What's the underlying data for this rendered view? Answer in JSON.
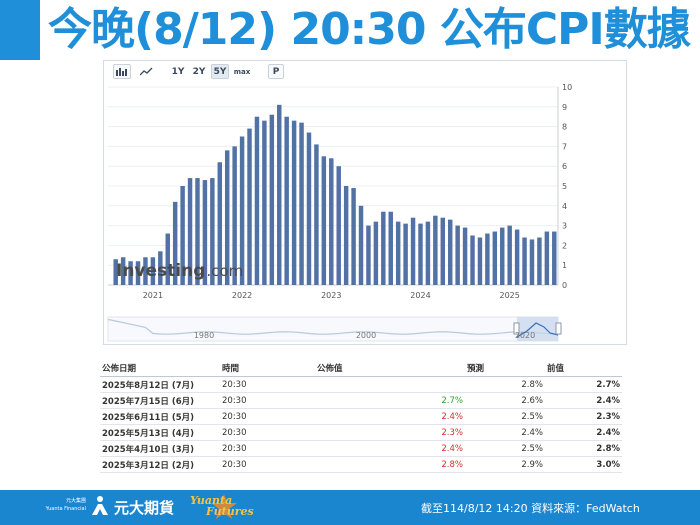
{
  "slide": {
    "title": "今晚(8/12) 20:30 公布CPI數據"
  },
  "toolbar": {
    "bar_chart_icon": "bar-chart-icon",
    "line_chart_icon": "line-chart-icon",
    "ranges": [
      "1Y",
      "2Y",
      "5Y",
      "max"
    ],
    "active_range": "5Y",
    "print_label": "P"
  },
  "chart": {
    "watermark_main": "Investing",
    "watermark_suffix": ".com",
    "navigator_labels": [
      "1980",
      "2000",
      "2020"
    ],
    "bar_color": "#5272a6",
    "navigator_color": "#b9c8dd"
  },
  "chart_data": {
    "type": "bar",
    "title": "",
    "xlabel": "",
    "ylabel": "",
    "ylim": [
      0,
      10
    ],
    "yticks": [
      0,
      1,
      2,
      3,
      4,
      5,
      6,
      7,
      8,
      9,
      10
    ],
    "year_labels": [
      "2021",
      "2022",
      "2023",
      "2024",
      "2025"
    ],
    "categories": [
      "2020-08",
      "2020-09",
      "2020-10",
      "2020-11",
      "2020-12",
      "2021-01",
      "2021-02",
      "2021-03",
      "2021-04",
      "2021-05",
      "2021-06",
      "2021-07",
      "2021-08",
      "2021-09",
      "2021-10",
      "2021-11",
      "2021-12",
      "2022-01",
      "2022-02",
      "2022-03",
      "2022-04",
      "2022-05",
      "2022-06",
      "2022-07",
      "2022-08",
      "2022-09",
      "2022-10",
      "2022-11",
      "2022-12",
      "2023-01",
      "2023-02",
      "2023-03",
      "2023-04",
      "2023-05",
      "2023-06",
      "2023-07",
      "2023-08",
      "2023-09",
      "2023-10",
      "2023-11",
      "2023-12",
      "2024-01",
      "2024-02",
      "2024-03",
      "2024-04",
      "2024-05",
      "2024-06",
      "2024-07",
      "2024-08",
      "2024-09",
      "2024-10",
      "2024-11",
      "2024-12",
      "2025-01",
      "2025-02",
      "2025-03",
      "2025-04",
      "2025-05",
      "2025-06",
      "2025-07"
    ],
    "values": [
      1.3,
      1.4,
      1.2,
      1.2,
      1.4,
      1.4,
      1.7,
      2.6,
      4.2,
      5.0,
      5.4,
      5.4,
      5.3,
      5.4,
      6.2,
      6.8,
      7.0,
      7.5,
      7.9,
      8.5,
      8.3,
      8.6,
      9.1,
      8.5,
      8.3,
      8.2,
      7.7,
      7.1,
      6.5,
      6.4,
      6.0,
      5.0,
      4.9,
      4.0,
      3.0,
      3.2,
      3.7,
      3.7,
      3.2,
      3.1,
      3.4,
      3.1,
      3.2,
      3.5,
      3.4,
      3.3,
      3.0,
      2.9,
      2.5,
      2.4,
      2.6,
      2.7,
      2.9,
      3.0,
      2.8,
      2.4,
      2.3,
      2.4,
      2.7,
      2.7
    ]
  },
  "table": {
    "headers": {
      "date": "公佈日期",
      "time": "時間",
      "actual": "公佈值",
      "forecast": "預測",
      "previous": "前值"
    },
    "rows": [
      {
        "date": "2025年8月12日 (7月)",
        "time": "20:30",
        "actual": "",
        "forecast": "2.8%",
        "previous": "2.7%",
        "actual_color": "#333333"
      },
      {
        "date": "2025年7月15日 (6月)",
        "time": "20:30",
        "actual": "2.7%",
        "forecast": "2.6%",
        "previous": "2.4%",
        "actual_color": "#2e9d2e"
      },
      {
        "date": "2025年6月11日 (5月)",
        "time": "20:30",
        "actual": "2.4%",
        "forecast": "2.5%",
        "previous": "2.3%",
        "actual_color": "#d52b2b"
      },
      {
        "date": "2025年5月13日 (4月)",
        "time": "20:30",
        "actual": "2.3%",
        "forecast": "2.4%",
        "previous": "2.4%",
        "actual_color": "#d52b2b"
      },
      {
        "date": "2025年4月10日 (3月)",
        "time": "20:30",
        "actual": "2.4%",
        "forecast": "2.5%",
        "previous": "2.8%",
        "actual_color": "#d52b2b"
      },
      {
        "date": "2025年3月12日 (2月)",
        "time": "20:30",
        "actual": "2.8%",
        "forecast": "2.9%",
        "previous": "3.0%",
        "actual_color": "#d52b2b"
      }
    ]
  },
  "footer": {
    "brand_small_cn": "元大集團",
    "brand_small_en": "Yuanta Financial",
    "brand_name": "元大期貨",
    "brand_en_1": "Yuanta",
    "brand_en_2": "Futures",
    "source_text": "截至114/8/12 14:20 資料來源：FedWatch",
    "bar_color": "#1b86d0",
    "accent_color": "#f5c542"
  }
}
